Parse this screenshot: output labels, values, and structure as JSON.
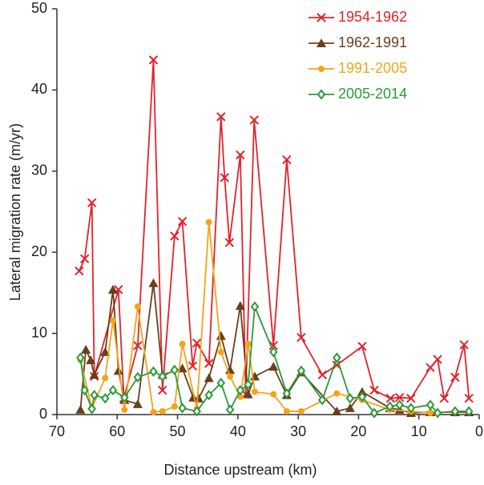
{
  "chart_data": {
    "type": "line",
    "xlabel": "Distance upstream (km)",
    "ylabel": "Lateral migration rate (m/yr)",
    "xlim": [
      70,
      0
    ],
    "xticks": [
      70,
      60,
      50,
      40,
      30,
      20,
      10,
      0
    ],
    "ylim": [
      0,
      50
    ],
    "yticks": [
      0,
      10,
      20,
      30,
      40,
      50
    ],
    "legend": "upper right",
    "series": [
      {
        "name": "1954-1962",
        "color": "#e3222b",
        "marker": "x",
        "x": [
          66.3,
          65.4,
          64.2,
          63.8,
          59.8,
          58.9,
          56.6,
          54.0,
          52.5,
          50.5,
          49.2,
          47.5,
          46.8,
          44.8,
          42.8,
          42.2,
          41.4,
          39.6,
          38.7,
          37.3,
          34.1,
          31.9,
          29.5,
          26.0,
          23.6,
          19.4,
          17.4,
          14.7,
          13.2,
          11.3,
          8.1,
          6.9,
          5.8,
          4.0,
          2.5,
          1.7
        ],
        "values": [
          17.7,
          19.2,
          26.1,
          4.7,
          15.4,
          2,
          8.5,
          43.7,
          3,
          22,
          23.8,
          6,
          8.8,
          6.3,
          36.7,
          29.2,
          21.2,
          32,
          2.5,
          36.3,
          8.5,
          31.4,
          9.5,
          4.9,
          6.1,
          8.4,
          3,
          2,
          2.1,
          2,
          5.8,
          6.8,
          2,
          4.6,
          8.6,
          2
        ]
      },
      {
        "name": "1962-1991",
        "color": "#6b3f1c",
        "marker": "triangle",
        "x": [
          66.1,
          65.2,
          64.4,
          63.8,
          62.0,
          60.7,
          59.8,
          58.8,
          56.6,
          54.0,
          52.5,
          49.2,
          47.4,
          46.5,
          44.8,
          42.8,
          41.3,
          39.6,
          38.3,
          37.2,
          34.1,
          31.9,
          29.5,
          23.6,
          21.4,
          19.4,
          14.8,
          13.2,
          11.3,
          8.1,
          4.0,
          1.7
        ],
        "values": [
          0.6,
          8,
          6.7,
          4.9,
          7.7,
          15.4,
          5.4,
          1.8,
          1.3,
          16.2,
          4.9,
          5.7,
          2.1,
          2,
          4.5,
          9.7,
          5.5,
          13.4,
          2.5,
          4.7,
          5.9,
          2.4,
          5.2,
          0.4,
          0.8,
          2.8,
          0.8,
          0.6,
          0.2,
          0.3,
          0.3,
          0.3
        ]
      },
      {
        "name": "1991-2005",
        "color": "#f5a31a",
        "marker": "circle",
        "x": [
          66.1,
          64.2,
          62.0,
          60.7,
          58.8,
          56.6,
          54.0,
          52.5,
          50.5,
          49.2,
          46.8,
          44.8,
          42.8,
          41.3,
          39.6,
          38.3,
          37.2,
          34.1,
          31.9,
          29.5,
          23.6,
          19.4,
          14.8,
          11.3,
          8.1,
          4.0,
          1.7
        ],
        "values": [
          6.7,
          0.8,
          4.5,
          11.6,
          0.6,
          13.3,
          0.3,
          0.4,
          1,
          8.7,
          0.7,
          23.7,
          7.7,
          4.7,
          2.2,
          8.7,
          2.8,
          2.5,
          0.4,
          0.4,
          2.6,
          1.8,
          0.6,
          0.4,
          0.2,
          0.4,
          0.4
        ]
      },
      {
        "name": "2005-2014",
        "color": "#2a9a3a",
        "marker": "diamond",
        "x": [
          66.1,
          65.4,
          64.2,
          63.8,
          62.0,
          60.7,
          58.8,
          56.6,
          54.0,
          52.5,
          50.5,
          49.2,
          46.8,
          44.8,
          42.8,
          41.3,
          39.6,
          38.3,
          37.2,
          34.1,
          31.9,
          29.5,
          26.0,
          23.6,
          21.4,
          19.4,
          17.4,
          14.8,
          13.2,
          11.3,
          8.1,
          6.9,
          4.0,
          1.7
        ],
        "values": [
          7,
          3,
          0.7,
          2.4,
          2,
          3,
          2.1,
          4.6,
          5.3,
          4.7,
          5.5,
          0.8,
          0.4,
          2.4,
          3.9,
          0.6,
          3,
          3.7,
          13.3,
          7.7,
          2.6,
          5.4,
          1.8,
          7,
          2,
          2.2,
          0.2,
          1,
          1.2,
          0.8,
          1.2,
          0.2,
          0.4,
          0.4
        ]
      }
    ]
  }
}
